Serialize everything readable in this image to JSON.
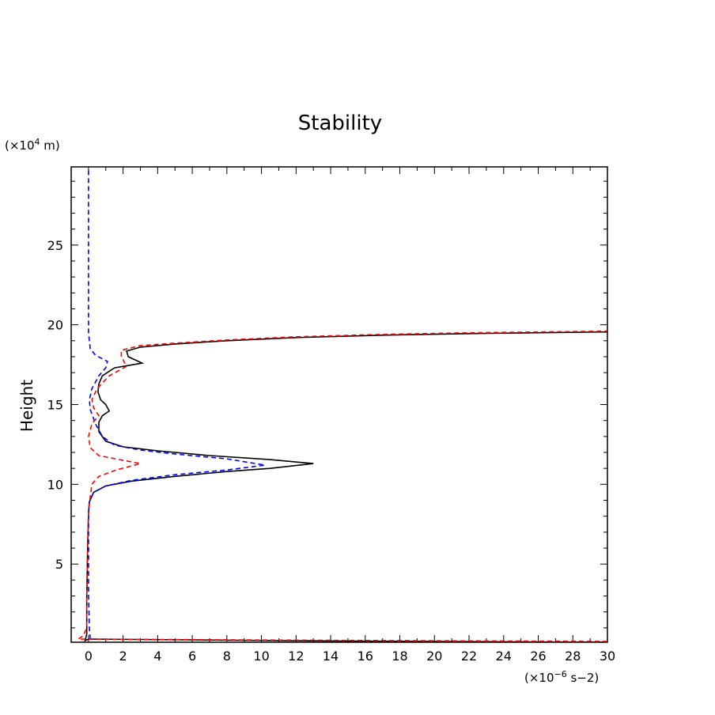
{
  "chart_data": {
    "type": "line",
    "title": "Stability",
    "ylabel": "Height",
    "y_unit": {
      "prefix": "(×10",
      "exponent": "4",
      "suffix": " m)"
    },
    "x_unit": {
      "prefix": "(×10",
      "exponent": "−6",
      "suffix": " s−2)"
    },
    "xlim": [
      -1,
      30
    ],
    "ylim": [
      0.1,
      29.9
    ],
    "xticks": [
      0,
      2,
      4,
      6,
      8,
      10,
      12,
      14,
      16,
      18,
      20,
      22,
      24,
      26,
      28,
      30
    ],
    "yticks": [
      5,
      10,
      15,
      20,
      25
    ],
    "grid": false,
    "legend": "none",
    "series": [
      {
        "color": "#000000",
        "dash": "solid",
        "points": [
          [
            30,
            0.1
          ],
          [
            14,
            0.18
          ],
          [
            0,
            0.3
          ],
          [
            -0.2,
            0.2
          ],
          [
            -0.1,
            0.6
          ],
          [
            -0.1,
            3
          ],
          [
            -0.05,
            6
          ],
          [
            0,
            8.2
          ],
          [
            0.05,
            8.9
          ],
          [
            0.3,
            9.5
          ],
          [
            1,
            9.9
          ],
          [
            2.5,
            10.2
          ],
          [
            5,
            10.5
          ],
          [
            8,
            10.8
          ],
          [
            10.5,
            11.0
          ],
          [
            13,
            11.3
          ],
          [
            10.5,
            11.55
          ],
          [
            7,
            11.8
          ],
          [
            4,
            12.1
          ],
          [
            2,
            12.35
          ],
          [
            1,
            12.7
          ],
          [
            0.6,
            13.3
          ],
          [
            0.6,
            13.9
          ],
          [
            0.8,
            14.3
          ],
          [
            1.2,
            14.6
          ],
          [
            1.0,
            15.0
          ],
          [
            0.7,
            15.3
          ],
          [
            0.55,
            15.8
          ],
          [
            0.6,
            16.3
          ],
          [
            0.8,
            16.8
          ],
          [
            1.5,
            17.3
          ],
          [
            3.1,
            17.6
          ],
          [
            2.3,
            18.0
          ],
          [
            2.2,
            18.35
          ],
          [
            3,
            18.6
          ],
          [
            5,
            18.8
          ],
          [
            8,
            19.0
          ],
          [
            12,
            19.2
          ],
          [
            17,
            19.35
          ],
          [
            22,
            19.45
          ],
          [
            26,
            19.5
          ],
          [
            30,
            19.55
          ]
        ]
      },
      {
        "color": "#0000ff",
        "dash": "dashed",
        "points": [
          [
            0.1,
            0.3
          ],
          [
            0.05,
            1
          ],
          [
            0,
            3
          ],
          [
            0,
            6
          ],
          [
            0,
            8.2
          ],
          [
            0.05,
            8.9
          ],
          [
            0.3,
            9.5
          ],
          [
            1,
            9.9
          ],
          [
            2.5,
            10.25
          ],
          [
            5,
            10.6
          ],
          [
            8,
            10.9
          ],
          [
            10.2,
            11.2
          ],
          [
            8,
            11.6
          ],
          [
            5,
            11.9
          ],
          [
            3,
            12.15
          ],
          [
            1.5,
            12.45
          ],
          [
            0.8,
            13.0
          ],
          [
            0.4,
            13.8
          ],
          [
            0.1,
            14.7
          ],
          [
            0.05,
            15.3
          ],
          [
            0.2,
            16.0
          ],
          [
            0.6,
            16.8
          ],
          [
            1.0,
            17.3
          ],
          [
            1.1,
            17.7
          ],
          [
            0.4,
            18.1
          ],
          [
            0.1,
            18.5
          ],
          [
            0,
            19.5
          ],
          [
            0,
            22
          ],
          [
            0,
            26
          ],
          [
            0,
            29.9
          ]
        ]
      },
      {
        "color": "#ff0000",
        "dash": "dashed",
        "points": [
          [
            30,
            0.15
          ],
          [
            14,
            0.22
          ],
          [
            -0.6,
            0.3
          ],
          [
            -0.3,
            0.5
          ],
          [
            -0.1,
            1
          ],
          [
            -0.1,
            3
          ],
          [
            -0.05,
            6
          ],
          [
            0,
            8.3
          ],
          [
            0.1,
            9.2
          ],
          [
            0.2,
            10.0
          ],
          [
            0.6,
            10.5
          ],
          [
            1.6,
            10.9
          ],
          [
            3,
            11.3
          ],
          [
            1.8,
            11.55
          ],
          [
            0.6,
            11.8
          ],
          [
            0.1,
            12.3
          ],
          [
            0,
            13
          ],
          [
            0.2,
            13.8
          ],
          [
            0.6,
            14.3
          ],
          [
            0.3,
            14.8
          ],
          [
            0.2,
            15.3
          ],
          [
            0.5,
            16.0
          ],
          [
            1.2,
            16.8
          ],
          [
            2.2,
            17.4
          ],
          [
            1.9,
            18.0
          ],
          [
            1.9,
            18.4
          ],
          [
            3,
            18.7
          ],
          [
            5,
            18.85
          ],
          [
            8,
            19.05
          ],
          [
            12,
            19.25
          ],
          [
            17,
            19.4
          ],
          [
            22,
            19.5
          ],
          [
            26,
            19.55
          ],
          [
            30,
            19.6
          ]
        ]
      }
    ]
  }
}
